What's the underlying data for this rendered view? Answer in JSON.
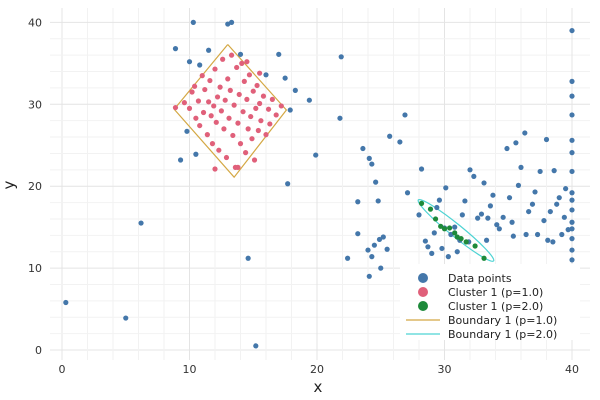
{
  "chart_data": {
    "type": "scatter",
    "xlabel": "x",
    "ylabel": "y",
    "xlim": [
      -1,
      41
    ],
    "ylim": [
      -0.5,
      41
    ],
    "xticks": [
      "0",
      "10",
      "20",
      "30",
      "40"
    ],
    "yticks": [
      "0",
      "10",
      "20",
      "30",
      "40"
    ],
    "grid": true,
    "legend_position": "bottom-right",
    "colors": {
      "data_points": "#4477aa",
      "cluster_p1": "#e0607a",
      "cluster_p2": "#1e8a3a",
      "boundary_p1": "#d4a844",
      "boundary_p2": "#4dd3d3"
    },
    "series": [
      {
        "name": "Data points",
        "kind": "scatter",
        "points": [
          [
            0.3,
            5.8
          ],
          [
            5.0,
            3.9
          ],
          [
            6.2,
            15.5
          ],
          [
            8.9,
            36.8
          ],
          [
            9.3,
            23.2
          ],
          [
            9.8,
            26.7
          ],
          [
            10.0,
            35.2
          ],
          [
            10.3,
            40.0
          ],
          [
            10.5,
            23.9
          ],
          [
            10.8,
            34.8
          ],
          [
            11.5,
            36.6
          ],
          [
            13.0,
            39.8
          ],
          [
            13.3,
            40.0
          ],
          [
            14.0,
            36.1
          ],
          [
            14.6,
            11.2
          ],
          [
            15.2,
            0.5
          ],
          [
            16.0,
            33.6
          ],
          [
            17.0,
            36.1
          ],
          [
            17.5,
            33.2
          ],
          [
            17.7,
            20.3
          ],
          [
            17.9,
            29.3
          ],
          [
            18.3,
            31.7
          ],
          [
            19.4,
            30.5
          ],
          [
            19.9,
            23.8
          ],
          [
            21.9,
            35.8
          ],
          [
            21.8,
            28.3
          ],
          [
            22.4,
            11.2
          ],
          [
            23.2,
            14.2
          ],
          [
            23.2,
            18.1
          ],
          [
            23.6,
            24.6
          ],
          [
            24.0,
            12.2
          ],
          [
            24.1,
            9.0
          ],
          [
            24.1,
            23.4
          ],
          [
            24.3,
            11.4
          ],
          [
            24.3,
            22.7
          ],
          [
            24.5,
            12.8
          ],
          [
            24.6,
            20.5
          ],
          [
            24.8,
            18.2
          ],
          [
            24.9,
            13.5
          ],
          [
            25.0,
            10.0
          ],
          [
            25.2,
            13.8
          ],
          [
            25.5,
            12.3
          ],
          [
            25.7,
            26.1
          ],
          [
            26.5,
            25.4
          ],
          [
            26.9,
            28.7
          ],
          [
            27.1,
            19.2
          ],
          [
            28.0,
            16.5
          ],
          [
            28.2,
            22.1
          ],
          [
            28.5,
            13.3
          ],
          [
            28.7,
            12.6
          ],
          [
            29.0,
            11.8
          ],
          [
            29.2,
            14.3
          ],
          [
            29.4,
            17.4
          ],
          [
            29.6,
            18.3
          ],
          [
            29.8,
            12.4
          ],
          [
            30.0,
            14.9
          ],
          [
            30.1,
            19.8
          ],
          [
            30.3,
            11.4
          ],
          [
            30.5,
            14.1
          ],
          [
            30.8,
            15.0
          ],
          [
            31.0,
            12.0
          ],
          [
            31.2,
            13.4
          ],
          [
            31.4,
            16.5
          ],
          [
            31.6,
            18.2
          ],
          [
            31.9,
            13.2
          ],
          [
            32.0,
            22.0
          ],
          [
            32.3,
            21.2
          ],
          [
            32.6,
            16.1
          ],
          [
            32.9,
            16.6
          ],
          [
            33.1,
            20.4
          ],
          [
            33.3,
            13.4
          ],
          [
            33.4,
            16.1
          ],
          [
            33.6,
            17.6
          ],
          [
            33.8,
            18.9
          ],
          [
            34.1,
            15.3
          ],
          [
            34.3,
            14.8
          ],
          [
            34.6,
            16.2
          ],
          [
            34.9,
            24.6
          ],
          [
            35.1,
            18.6
          ],
          [
            35.3,
            15.6
          ],
          [
            35.4,
            13.9
          ],
          [
            35.6,
            25.3
          ],
          [
            35.8,
            20.1
          ],
          [
            36.0,
            22.3
          ],
          [
            36.3,
            26.5
          ],
          [
            36.4,
            14.1
          ],
          [
            36.6,
            16.9
          ],
          [
            36.9,
            17.8
          ],
          [
            37.1,
            19.3
          ],
          [
            37.3,
            14.1
          ],
          [
            37.5,
            21.8
          ],
          [
            37.8,
            15.8
          ],
          [
            38.0,
            25.7
          ],
          [
            38.1,
            13.4
          ],
          [
            38.3,
            16.9
          ],
          [
            38.5,
            13.2
          ],
          [
            38.6,
            21.9
          ],
          [
            38.8,
            17.8
          ],
          [
            39.0,
            18.6
          ],
          [
            39.2,
            14.1
          ],
          [
            39.4,
            16.2
          ],
          [
            39.5,
            19.7
          ],
          [
            39.7,
            14.7
          ],
          [
            40.0,
            39.0
          ],
          [
            40.0,
            32.8
          ],
          [
            40.0,
            31.0
          ],
          [
            40.0,
            28.7
          ],
          [
            40.0,
            25.6
          ],
          [
            40.0,
            24.1
          ],
          [
            40.0,
            21.8
          ],
          [
            40.0,
            19.2
          ],
          [
            40.0,
            18.3
          ],
          [
            40.0,
            17.1
          ],
          [
            40.0,
            15.6
          ],
          [
            40.0,
            14.8
          ],
          [
            40.0,
            13.6
          ],
          [
            40.0,
            12.2
          ],
          [
            40.0,
            11.0
          ]
        ]
      },
      {
        "name": "Cluster 1 (p=1.0)",
        "kind": "scatter",
        "points": [
          [
            8.9,
            29.6
          ],
          [
            9.6,
            30.2
          ],
          [
            10.0,
            29.5
          ],
          [
            10.2,
            31.5
          ],
          [
            10.4,
            32.2
          ],
          [
            10.5,
            28.3
          ],
          [
            10.7,
            30.4
          ],
          [
            10.8,
            27.4
          ],
          [
            11.0,
            33.5
          ],
          [
            11.1,
            29.0
          ],
          [
            11.2,
            31.8
          ],
          [
            11.4,
            26.3
          ],
          [
            11.5,
            30.3
          ],
          [
            11.6,
            32.9
          ],
          [
            11.7,
            28.6
          ],
          [
            11.8,
            25.2
          ],
          [
            11.9,
            29.8
          ],
          [
            12.0,
            34.3
          ],
          [
            12.1,
            27.8
          ],
          [
            12.2,
            30.9
          ],
          [
            12.3,
            24.4
          ],
          [
            12.4,
            32.1
          ],
          [
            12.5,
            29.2
          ],
          [
            12.6,
            35.5
          ],
          [
            12.7,
            27.0
          ],
          [
            12.8,
            30.5
          ],
          [
            12.9,
            23.5
          ],
          [
            13.0,
            33.1
          ],
          [
            13.1,
            28.3
          ],
          [
            13.2,
            31.7
          ],
          [
            13.3,
            36.0
          ],
          [
            13.4,
            26.2
          ],
          [
            13.5,
            29.9
          ],
          [
            13.6,
            22.3
          ],
          [
            13.7,
            34.5
          ],
          [
            13.8,
            27.7
          ],
          [
            13.9,
            31.2
          ],
          [
            14.0,
            25.2
          ],
          [
            14.1,
            35.0
          ],
          [
            14.2,
            29.1
          ],
          [
            14.3,
            32.8
          ],
          [
            14.4,
            24.1
          ],
          [
            14.5,
            30.6
          ],
          [
            14.6,
            27.0
          ],
          [
            14.7,
            33.6
          ],
          [
            14.8,
            28.5
          ],
          [
            14.9,
            25.8
          ],
          [
            15.0,
            31.6
          ],
          [
            15.1,
            23.2
          ],
          [
            15.2,
            29.5
          ],
          [
            15.3,
            32.3
          ],
          [
            15.4,
            26.8
          ],
          [
            15.5,
            30.1
          ],
          [
            15.6,
            28.0
          ],
          [
            15.8,
            31.0
          ],
          [
            16.0,
            26.3
          ],
          [
            16.2,
            29.4
          ],
          [
            16.3,
            27.6
          ],
          [
            16.5,
            30.6
          ],
          [
            16.8,
            28.7
          ],
          [
            17.2,
            29.8
          ],
          [
            12.0,
            22.1
          ],
          [
            13.8,
            22.3
          ],
          [
            14.5,
            35.2
          ],
          [
            15.5,
            33.8
          ]
        ]
      },
      {
        "name": "Cluster 1 (p=2.0)",
        "kind": "scatter",
        "points": [
          [
            28.2,
            17.9
          ],
          [
            28.9,
            17.2
          ],
          [
            29.3,
            16.0
          ],
          [
            29.7,
            15.1
          ],
          [
            30.0,
            14.8
          ],
          [
            30.4,
            14.9
          ],
          [
            30.8,
            14.3
          ],
          [
            31.0,
            13.8
          ],
          [
            31.3,
            13.6
          ],
          [
            31.7,
            13.2
          ],
          [
            32.4,
            12.7
          ],
          [
            33.1,
            11.2
          ]
        ]
      },
      {
        "name": "Boundary 1 (p=1.0)",
        "kind": "line",
        "points": [
          [
            13.0,
            37.3
          ],
          [
            17.6,
            29.3
          ],
          [
            13.5,
            21.1
          ],
          [
            8.8,
            29.4
          ],
          [
            13.0,
            37.3
          ]
        ]
      },
      {
        "name": "Boundary 1 (p=2.0)",
        "kind": "ellipse",
        "center": [
          30.9,
          14.6
        ],
        "semi_axes": [
          3.8,
          0.75
        ],
        "angle_deg": 39
      }
    ]
  }
}
